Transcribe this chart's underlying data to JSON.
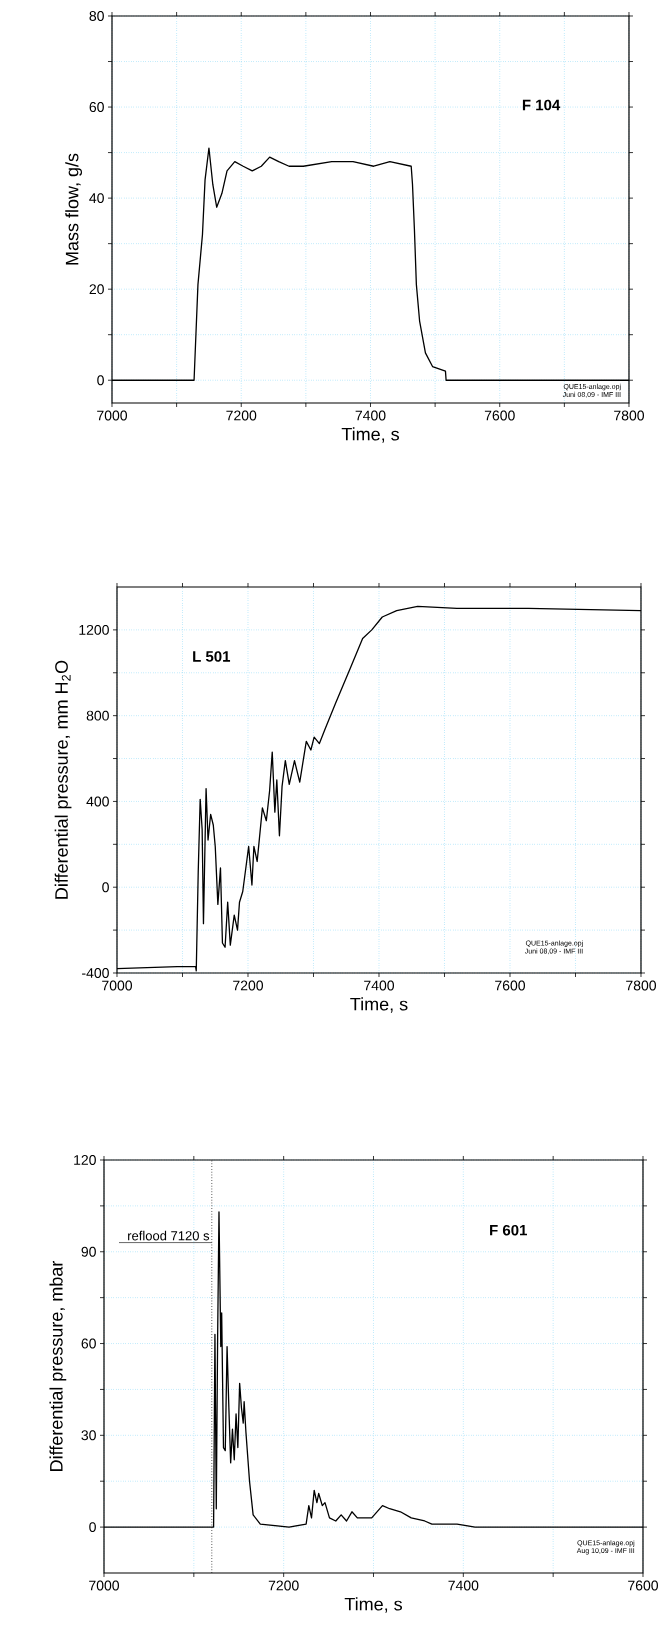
{
  "chart_data": [
    {
      "type": "line",
      "xlabel": "Time, s",
      "ylabel": "Mass flow, g/s",
      "annotations": [
        "F 104",
        "QUE15-anlage.opj",
        "Juni 08,09 - IMF III"
      ],
      "x": [
        7000,
        7127,
        7133,
        7140,
        7144,
        7150,
        7156,
        7162,
        7170,
        7178,
        7190,
        7203,
        7217,
        7231,
        7244,
        7258,
        7274,
        7296,
        7340,
        7373,
        7405,
        7430,
        7463,
        7465,
        7468,
        7471,
        7476,
        7485,
        7496,
        7516,
        7517,
        7800
      ],
      "series": [
        {
          "color": "#000000",
          "values": [
            0,
            0,
            21,
            32,
            44,
            51,
            43,
            38,
            41,
            46,
            48,
            47,
            46,
            47,
            49,
            48,
            47,
            47,
            48,
            48,
            47,
            48,
            47,
            43,
            33,
            21,
            13,
            6,
            3,
            2,
            0,
            0
          ]
        }
      ],
      "xlim": [
        7000,
        7800
      ],
      "ylim": [
        -5,
        80
      ],
      "xticks": [
        7000,
        {
          "value": 7100,
          "label": null
        },
        7200,
        {
          "value": 7300,
          "label": null
        },
        7400,
        {
          "value": 7500,
          "label": null
        },
        7600,
        {
          "value": 7700,
          "label": null
        },
        7800
      ],
      "yticks": [
        0,
        {
          "value": 10,
          "label": null
        },
        20,
        {
          "value": 30,
          "label": null
        },
        40,
        {
          "value": 50,
          "label": null
        },
        60,
        {
          "value": 70,
          "label": null
        },
        80
      ],
      "grid": true
    },
    {
      "type": "line",
      "xlabel": "Time, s",
      "ylabel": "Differential pressure, mm H$_{2}$O",
      "annotations": [
        "L 501",
        "QUE15-anlage.opj",
        "Juni 08,09 - IMF III"
      ],
      "x": [
        7000,
        7092,
        7120,
        7121,
        7124,
        7127,
        7130,
        7132,
        7136,
        7139,
        7143,
        7147,
        7150,
        7154,
        7158,
        7161,
        7165,
        7169,
        7173,
        7179,
        7184,
        7187,
        7192,
        7201,
        7206,
        7209,
        7214,
        7222,
        7228,
        7233,
        7237,
        7241,
        7244,
        7248,
        7252,
        7257,
        7263,
        7271,
        7279,
        7289,
        7296,
        7301,
        7309,
        7318,
        7334,
        7356,
        7375,
        7389,
        7405,
        7427,
        7459,
        7519,
        7628,
        7800
      ],
      "series": [
        {
          "color": "#000000",
          "values": [
            -380,
            -370,
            -370,
            -390,
            70,
            410,
            270,
            -170,
            460,
            220,
            340,
            290,
            190,
            -80,
            90,
            -260,
            -280,
            -70,
            -270,
            -130,
            -200,
            -70,
            -20,
            190,
            10,
            190,
            120,
            370,
            310,
            450,
            630,
            350,
            500,
            240,
            470,
            590,
            480,
            590,
            490,
            680,
            640,
            700,
            670,
            740,
            860,
            1020,
            1160,
            1200,
            1260,
            1290,
            1310,
            1300,
            1300,
            1290
          ]
        }
      ],
      "xlim": [
        7000,
        7800
      ],
      "ylim": [
        -400,
        1400
      ],
      "xticks": [
        7000,
        {
          "value": 7100,
          "label": null
        },
        7200,
        {
          "value": 7300,
          "label": null
        },
        7400,
        {
          "value": 7500,
          "label": null
        },
        7600,
        {
          "value": 7700,
          "label": null
        },
        7800
      ],
      "yticks": [
        -400,
        {
          "value": -200,
          "label": null
        },
        0,
        {
          "value": 200,
          "label": null
        },
        400,
        {
          "value": 600,
          "label": null
        },
        800,
        {
          "value": 1000,
          "label": null
        },
        1200
      ],
      "grid": true
    },
    {
      "type": "line",
      "xlabel": "Time, s",
      "ylabel": "Differential pressure, mbar",
      "annotations": [
        "F 601",
        "QUE15-anlage.opj",
        "Aug 10,09 - IMF III"
      ],
      "x": [
        7000,
        7093,
        7122,
        7123.5,
        7125,
        7126.5,
        7128,
        7130,
        7131,
        7133,
        7135,
        7137,
        7139,
        7141,
        7143,
        7145,
        7147,
        7149,
        7151,
        7153,
        7155,
        7156,
        7158,
        7162,
        7166,
        7174,
        7206,
        7225,
        7228,
        7231,
        7234,
        7237,
        7239,
        7243,
        7246,
        7251,
        7258,
        7264,
        7270,
        7276,
        7282,
        7290,
        7298,
        7310,
        7318,
        7330,
        7342,
        7357,
        7365,
        7393,
        7413,
        7600
      ],
      "series": [
        {
          "color": "#000000",
          "values": [
            0,
            0,
            0,
            63,
            6,
            62,
            103,
            59,
            70,
            26,
            25,
            59,
            39,
            21,
            32,
            22,
            37,
            26,
            47,
            39,
            34,
            41,
            31,
            15,
            4,
            1,
            0,
            1,
            7,
            3,
            12,
            8,
            11,
            7,
            8,
            3,
            2,
            4,
            2,
            5,
            3,
            3,
            3,
            7,
            6,
            5,
            3,
            2,
            1,
            1,
            0,
            0
          ]
        }
      ],
      "xlim": [
        7000,
        7600
      ],
      "ylim": [
        -15,
        120
      ],
      "xticks": [
        7000,
        {
          "value": 7100,
          "label": null
        },
        7200,
        {
          "value": 7300,
          "label": null
        },
        7400,
        {
          "value": 7500,
          "label": null
        },
        7600
      ],
      "yticks": [
        0,
        {
          "value": 15,
          "label": null
        },
        30,
        {
          "value": 45,
          "label": null
        },
        60,
        {
          "value": 75,
          "label": null
        },
        90,
        {
          "value": 105,
          "label": null
        },
        120
      ],
      "ref_lines": [
        {
          "axis": "x",
          "value": 7120,
          "label": "reflood 7120 s",
          "color": "#000000",
          "line_style": "dotted"
        }
      ],
      "grid": true
    }
  ]
}
